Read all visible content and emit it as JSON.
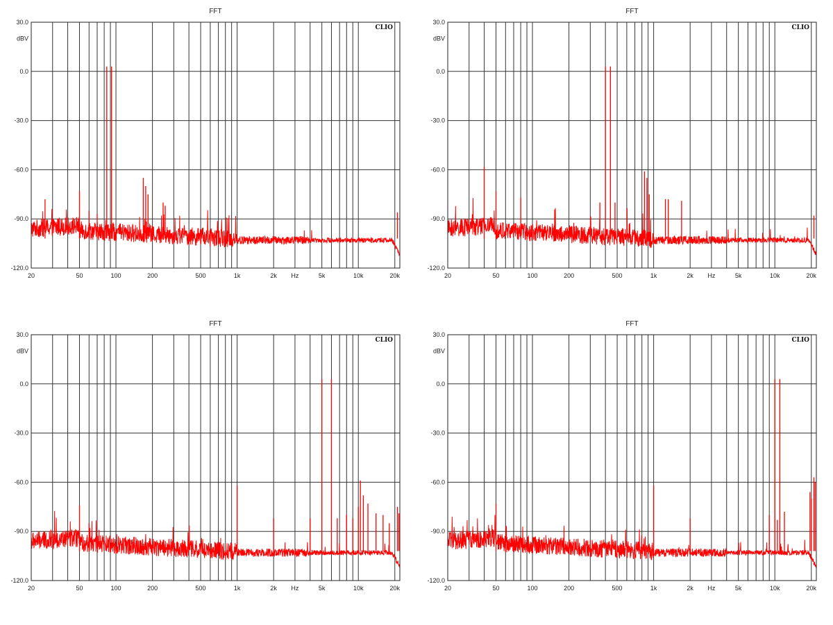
{
  "chart_data": [
    {
      "type": "line",
      "title": "FFT",
      "ylabel": "dBV",
      "xlabel": "Hz",
      "brand": "CLIO",
      "xscale": "log",
      "xlim": [
        20,
        22000
      ],
      "ylim": [
        -120,
        30
      ],
      "grid": true,
      "x_ticks": [
        {
          "v": 20,
          "label": "20"
        },
        {
          "v": 50,
          "label": "50"
        },
        {
          "v": 100,
          "label": "100"
        },
        {
          "v": 200,
          "label": "200"
        },
        {
          "v": 500,
          "label": "500"
        },
        {
          "v": 1000,
          "label": "1k"
        },
        {
          "v": 2000,
          "label": "2k"
        },
        {
          "v": 5000,
          "label": "5k"
        },
        {
          "v": 10000,
          "label": "10k"
        },
        {
          "v": 20000,
          "label": "20k"
        }
      ],
      "y_ticks": [
        {
          "v": 30,
          "label": "30.0"
        },
        {
          "v": 0,
          "label": "0.0"
        },
        {
          "v": -30,
          "label": "-30.0"
        },
        {
          "v": -60,
          "label": "-60.0"
        },
        {
          "v": -90,
          "label": "-90.0"
        },
        {
          "v": -120,
          "label": "-120.0"
        }
      ],
      "series_color": "#ff0000",
      "peaks": [
        [
          26,
          -78
        ],
        [
          50,
          -73
        ],
        [
          60,
          -85
        ],
        [
          70,
          -87
        ],
        [
          84,
          3
        ],
        [
          92,
          3
        ],
        [
          168,
          -65
        ],
        [
          176,
          -70
        ],
        [
          184,
          -75
        ],
        [
          245,
          -80
        ],
        [
          255,
          -82
        ],
        [
          21000,
          -86
        ]
      ]
    },
    {
      "type": "line",
      "title": "FFT",
      "ylabel": "dBV",
      "xlabel": "Hz",
      "brand": "CLIO",
      "xscale": "log",
      "xlim": [
        20,
        22000
      ],
      "ylim": [
        -120,
        30
      ],
      "grid": true,
      "x_ticks": [
        {
          "v": 20,
          "label": "20"
        },
        {
          "v": 50,
          "label": "50"
        },
        {
          "v": 100,
          "label": "100"
        },
        {
          "v": 200,
          "label": "200"
        },
        {
          "v": 500,
          "label": "500"
        },
        {
          "v": 1000,
          "label": "1k"
        },
        {
          "v": 2000,
          "label": "2k"
        },
        {
          "v": 5000,
          "label": "5k"
        },
        {
          "v": 10000,
          "label": "10k"
        },
        {
          "v": 20000,
          "label": "20k"
        }
      ],
      "y_ticks": [
        {
          "v": 30,
          "label": "30.0"
        },
        {
          "v": 0,
          "label": "0.0"
        },
        {
          "v": -30,
          "label": "-30.0"
        },
        {
          "v": -60,
          "label": "-60.0"
        },
        {
          "v": -90,
          "label": "-90.0"
        },
        {
          "v": -120,
          "label": "-120.0"
        }
      ],
      "series_color": "#ff0000",
      "peaks": [
        [
          40,
          -58
        ],
        [
          50,
          -73
        ],
        [
          80,
          -77
        ],
        [
          400,
          3
        ],
        [
          440,
          3
        ],
        [
          360,
          -80
        ],
        [
          480,
          -80
        ],
        [
          840,
          -61
        ],
        [
          880,
          -65
        ],
        [
          920,
          -75
        ],
        [
          1250,
          -78
        ],
        [
          1320,
          -78
        ],
        [
          1700,
          -79
        ],
        [
          21000,
          -88
        ]
      ]
    },
    {
      "type": "line",
      "title": "FFT",
      "ylabel": "dBV",
      "xlabel": "Hz",
      "brand": "CLIO",
      "xscale": "log",
      "xlim": [
        20,
        22000
      ],
      "ylim": [
        -120,
        30
      ],
      "grid": true,
      "x_ticks": [
        {
          "v": 20,
          "label": "20"
        },
        {
          "v": 50,
          "label": "50"
        },
        {
          "v": 100,
          "label": "100"
        },
        {
          "v": 200,
          "label": "200"
        },
        {
          "v": 500,
          "label": "500"
        },
        {
          "v": 1000,
          "label": "1k"
        },
        {
          "v": 2000,
          "label": "2k"
        },
        {
          "v": 5000,
          "label": "5k"
        },
        {
          "v": 10000,
          "label": "10k"
        },
        {
          "v": 20000,
          "label": "20k"
        }
      ],
      "y_ticks": [
        {
          "v": 30,
          "label": "30.0"
        },
        {
          "v": 0,
          "label": "0.0"
        },
        {
          "v": -30,
          "label": "-30.0"
        },
        {
          "v": -60,
          "label": "-60.0"
        },
        {
          "v": -90,
          "label": "-90.0"
        },
        {
          "v": -120,
          "label": "-120.0"
        }
      ],
      "series_color": "#ff0000",
      "peaks": [
        [
          50,
          -74
        ],
        [
          60,
          -85
        ],
        [
          1000,
          -62
        ],
        [
          2000,
          -82
        ],
        [
          4000,
          -82
        ],
        [
          5000,
          3
        ],
        [
          6000,
          3
        ],
        [
          6700,
          -82
        ],
        [
          8000,
          -80
        ],
        [
          9000,
          -82
        ],
        [
          10000,
          -75
        ],
        [
          10400,
          -59
        ],
        [
          11000,
          -68
        ],
        [
          12000,
          -73
        ],
        [
          14000,
          -79
        ],
        [
          16000,
          -80
        ],
        [
          18000,
          -85
        ],
        [
          21000,
          -75
        ],
        [
          21600,
          -79
        ]
      ]
    },
    {
      "type": "line",
      "title": "FFT",
      "ylabel": "dBV",
      "xlabel": "Hz",
      "brand": "CLIO",
      "xscale": "log",
      "xlim": [
        20,
        22000
      ],
      "ylim": [
        -120,
        30
      ],
      "grid": true,
      "x_ticks": [
        {
          "v": 20,
          "label": "20"
        },
        {
          "v": 50,
          "label": "50"
        },
        {
          "v": 100,
          "label": "100"
        },
        {
          "v": 200,
          "label": "200"
        },
        {
          "v": 500,
          "label": "500"
        },
        {
          "v": 1000,
          "label": "1k"
        },
        {
          "v": 2000,
          "label": "2k"
        },
        {
          "v": 5000,
          "label": "5k"
        },
        {
          "v": 10000,
          "label": "10k"
        },
        {
          "v": 20000,
          "label": "20k"
        }
      ],
      "y_ticks": [
        {
          "v": 30,
          "label": "30.0"
        },
        {
          "v": 0,
          "label": "0.0"
        },
        {
          "v": -30,
          "label": "-30.0"
        },
        {
          "v": -60,
          "label": "-60.0"
        },
        {
          "v": -90,
          "label": "-90.0"
        },
        {
          "v": -120,
          "label": "-120.0"
        }
      ],
      "series_color": "#ff0000",
      "peaks": [
        [
          50,
          -73
        ],
        [
          1000,
          -62
        ],
        [
          2000,
          -82
        ],
        [
          9000,
          -80
        ],
        [
          10000,
          3
        ],
        [
          11000,
          3
        ],
        [
          10500,
          -83
        ],
        [
          12000,
          -78
        ],
        [
          19500,
          -66
        ],
        [
          20000,
          -70
        ],
        [
          21000,
          -57
        ],
        [
          21500,
          -60
        ]
      ]
    }
  ]
}
